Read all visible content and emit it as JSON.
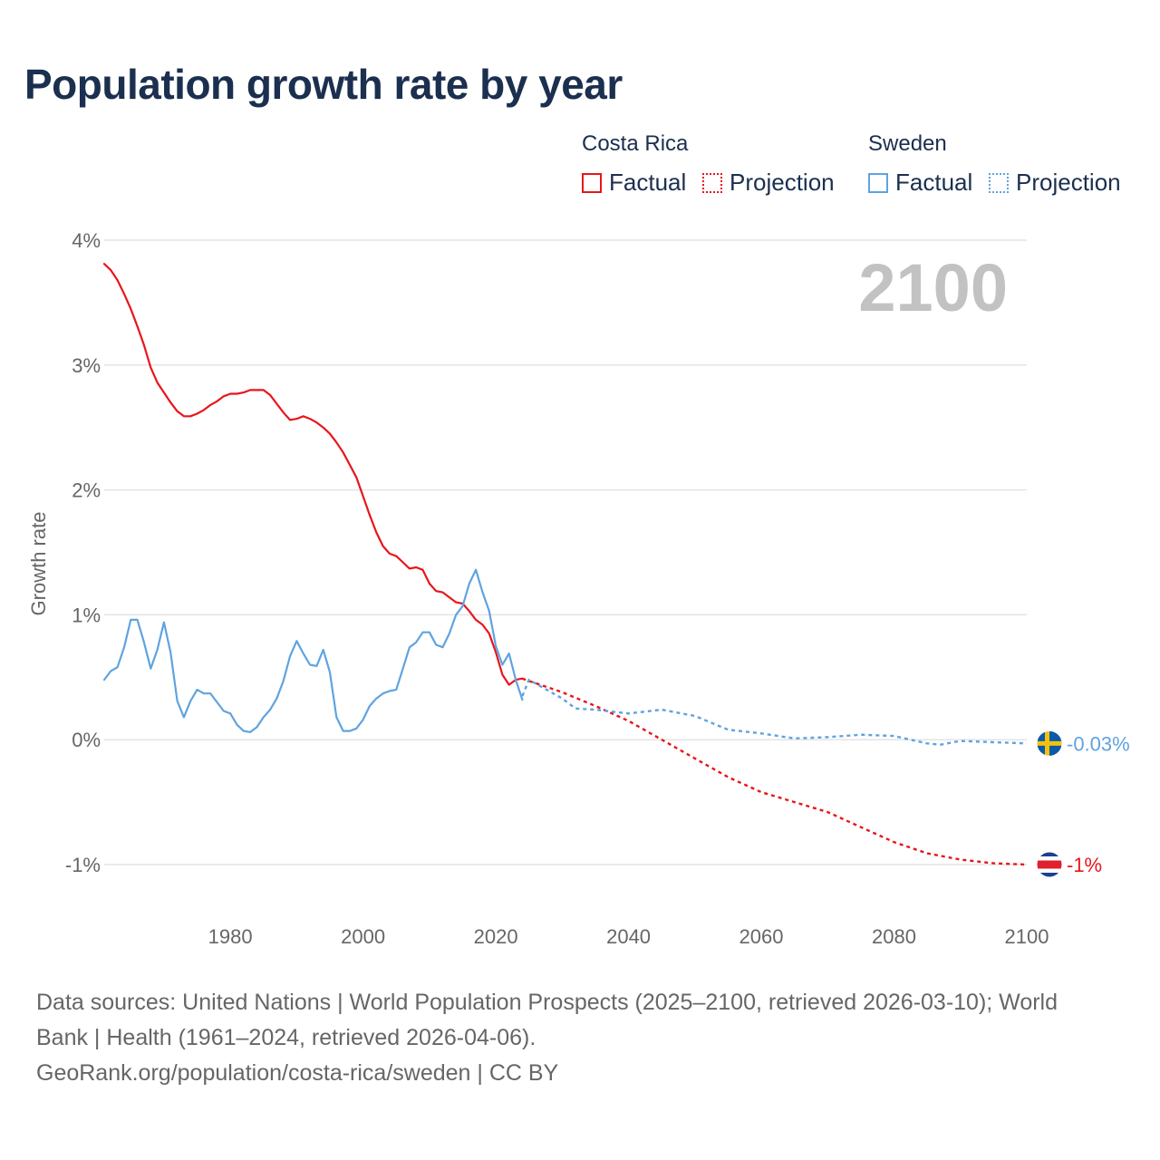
{
  "title": "Population growth rate by year",
  "legend": {
    "groups": [
      {
        "name": "Costa Rica",
        "color": "#e8151b",
        "factual_label": "Factual",
        "projection_label": "Projection"
      },
      {
        "name": "Sweden",
        "color": "#5fa3e0",
        "factual_label": "Factual",
        "projection_label": "Projection"
      }
    ]
  },
  "sources": {
    "line1": "Data sources: United Nations | World Population Prospects (2025–2100, retrieved 2026-03-10); World",
    "line2": "Bank | Health (1961–2024, retrieved 2026-04-06).",
    "line3": "GeoRank.org/population/costa-rica/sweden | CC BY"
  },
  "chart_data": {
    "type": "line",
    "title": "Population growth rate by year",
    "ylabel": "Growth rate",
    "xlabel": "",
    "xlim": [
      1961,
      2100
    ],
    "ylim": [
      -1,
      4
    ],
    "x_ticks": [
      1980,
      2000,
      2020,
      2040,
      2060,
      2080,
      2100
    ],
    "y_ticks": [
      -1,
      0,
      1,
      2,
      3,
      4
    ],
    "y_tick_labels": [
      "-1%",
      "0%",
      "1%",
      "2%",
      "3%",
      "4%"
    ],
    "year_watermark": "2100",
    "series": [
      {
        "name": "Costa Rica",
        "kind": "factual",
        "color": "#e8151b",
        "points": [
          [
            1961,
            3.81
          ],
          [
            1962,
            3.76
          ],
          [
            1963,
            3.68
          ],
          [
            1964,
            3.57
          ],
          [
            1965,
            3.45
          ],
          [
            1966,
            3.31
          ],
          [
            1967,
            3.16
          ],
          [
            1968,
            2.98
          ],
          [
            1969,
            2.86
          ],
          [
            1970,
            2.78
          ],
          [
            1971,
            2.7
          ],
          [
            1972,
            2.63
          ],
          [
            1973,
            2.59
          ],
          [
            1974,
            2.59
          ],
          [
            1975,
            2.61
          ],
          [
            1976,
            2.64
          ],
          [
            1977,
            2.68
          ],
          [
            1978,
            2.71
          ],
          [
            1979,
            2.75
          ],
          [
            1980,
            2.77
          ],
          [
            1981,
            2.77
          ],
          [
            1982,
            2.78
          ],
          [
            1983,
            2.8
          ],
          [
            1984,
            2.8
          ],
          [
            1985,
            2.8
          ],
          [
            1986,
            2.76
          ],
          [
            1987,
            2.69
          ],
          [
            1988,
            2.62
          ],
          [
            1989,
            2.56
          ],
          [
            1990,
            2.57
          ],
          [
            1991,
            2.59
          ],
          [
            1992,
            2.57
          ],
          [
            1993,
            2.54
          ],
          [
            1994,
            2.5
          ],
          [
            1995,
            2.45
          ],
          [
            1996,
            2.38
          ],
          [
            1997,
            2.3
          ],
          [
            1998,
            2.2
          ],
          [
            1999,
            2.1
          ],
          [
            2000,
            1.95
          ],
          [
            2001,
            1.8
          ],
          [
            2002,
            1.66
          ],
          [
            2003,
            1.55
          ],
          [
            2004,
            1.49
          ],
          [
            2005,
            1.47
          ],
          [
            2006,
            1.42
          ],
          [
            2007,
            1.37
          ],
          [
            2008,
            1.38
          ],
          [
            2009,
            1.36
          ],
          [
            2010,
            1.25
          ],
          [
            2011,
            1.19
          ],
          [
            2012,
            1.18
          ],
          [
            2013,
            1.14
          ],
          [
            2014,
            1.1
          ],
          [
            2015,
            1.09
          ],
          [
            2016,
            1.03
          ],
          [
            2017,
            0.96
          ],
          [
            2018,
            0.92
          ],
          [
            2019,
            0.85
          ],
          [
            2020,
            0.7
          ],
          [
            2021,
            0.52
          ],
          [
            2022,
            0.44
          ],
          [
            2023,
            0.48
          ],
          [
            2024,
            0.49
          ]
        ]
      },
      {
        "name": "Costa Rica",
        "kind": "projection",
        "color": "#e8151b",
        "points": [
          [
            2024,
            0.49
          ],
          [
            2025,
            0.47
          ],
          [
            2030,
            0.38
          ],
          [
            2035,
            0.27
          ],
          [
            2040,
            0.15
          ],
          [
            2045,
            0.0
          ],
          [
            2050,
            -0.15
          ],
          [
            2055,
            -0.3
          ],
          [
            2060,
            -0.42
          ],
          [
            2065,
            -0.5
          ],
          [
            2070,
            -0.58
          ],
          [
            2075,
            -0.7
          ],
          [
            2080,
            -0.82
          ],
          [
            2085,
            -0.91
          ],
          [
            2090,
            -0.96
          ],
          [
            2095,
            -0.99
          ],
          [
            2100,
            -1.0
          ]
        ]
      },
      {
        "name": "Sweden",
        "kind": "factual",
        "color": "#5fa3e0",
        "points": [
          [
            1961,
            0.48
          ],
          [
            1962,
            0.55
          ],
          [
            1963,
            0.58
          ],
          [
            1964,
            0.74
          ],
          [
            1965,
            0.96
          ],
          [
            1966,
            0.96
          ],
          [
            1967,
            0.78
          ],
          [
            1968,
            0.57
          ],
          [
            1969,
            0.72
          ],
          [
            1970,
            0.94
          ],
          [
            1971,
            0.7
          ],
          [
            1972,
            0.31
          ],
          [
            1973,
            0.18
          ],
          [
            1974,
            0.31
          ],
          [
            1975,
            0.4
          ],
          [
            1976,
            0.37
          ],
          [
            1977,
            0.37
          ],
          [
            1978,
            0.3
          ],
          [
            1979,
            0.23
          ],
          [
            1980,
            0.21
          ],
          [
            1981,
            0.12
          ],
          [
            1982,
            0.07
          ],
          [
            1983,
            0.06
          ],
          [
            1984,
            0.1
          ],
          [
            1985,
            0.18
          ],
          [
            1986,
            0.24
          ],
          [
            1987,
            0.33
          ],
          [
            1988,
            0.47
          ],
          [
            1989,
            0.67
          ],
          [
            1990,
            0.79
          ],
          [
            1991,
            0.69
          ],
          [
            1992,
            0.6
          ],
          [
            1993,
            0.59
          ],
          [
            1994,
            0.72
          ],
          [
            1995,
            0.54
          ],
          [
            1996,
            0.18
          ],
          [
            1997,
            0.07
          ],
          [
            1998,
            0.07
          ],
          [
            1999,
            0.09
          ],
          [
            2000,
            0.16
          ],
          [
            2001,
            0.27
          ],
          [
            2002,
            0.33
          ],
          [
            2003,
            0.37
          ],
          [
            2004,
            0.39
          ],
          [
            2005,
            0.4
          ],
          [
            2006,
            0.57
          ],
          [
            2007,
            0.74
          ],
          [
            2008,
            0.78
          ],
          [
            2009,
            0.86
          ],
          [
            2010,
            0.86
          ],
          [
            2011,
            0.76
          ],
          [
            2012,
            0.74
          ],
          [
            2013,
            0.85
          ],
          [
            2014,
            1.0
          ],
          [
            2015,
            1.07
          ],
          [
            2016,
            1.25
          ],
          [
            2017,
            1.36
          ],
          [
            2018,
            1.18
          ],
          [
            2019,
            1.03
          ],
          [
            2020,
            0.75
          ],
          [
            2021,
            0.6
          ],
          [
            2022,
            0.69
          ],
          [
            2023,
            0.48
          ],
          [
            2024,
            0.32
          ]
        ]
      },
      {
        "name": "Sweden",
        "kind": "projection",
        "color": "#5fa3e0",
        "points": [
          [
            2024,
            0.35
          ],
          [
            2025,
            0.48
          ],
          [
            2030,
            0.33
          ],
          [
            2032,
            0.25
          ],
          [
            2035,
            0.24
          ],
          [
            2040,
            0.21
          ],
          [
            2045,
            0.24
          ],
          [
            2050,
            0.19
          ],
          [
            2055,
            0.08
          ],
          [
            2060,
            0.05
          ],
          [
            2065,
            0.01
          ],
          [
            2070,
            0.02
          ],
          [
            2075,
            0.04
          ],
          [
            2080,
            0.03
          ],
          [
            2085,
            -0.03
          ],
          [
            2087,
            -0.04
          ],
          [
            2090,
            -0.01
          ],
          [
            2095,
            -0.02
          ],
          [
            2100,
            -0.03
          ]
        ]
      }
    ],
    "end_labels": [
      {
        "name": "Sweden",
        "value": -0.03,
        "label": "-0.03%",
        "color": "#5fa3e0",
        "flag": "sweden-flag"
      },
      {
        "name": "Costa Rica",
        "value": -1.0,
        "label": "-1%",
        "color": "#e8151b",
        "flag": "costa-rica-flag"
      }
    ]
  }
}
